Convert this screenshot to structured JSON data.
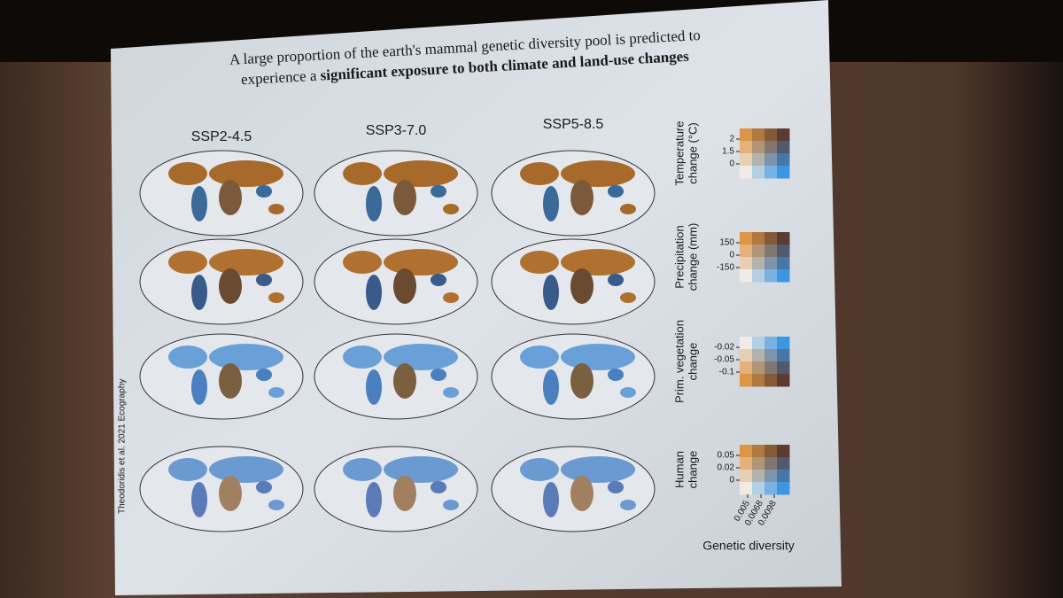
{
  "slide": {
    "title_line1": "A large proportion of the earth's mammal genetic diversity pool is predicted to",
    "title_line2_start": "experience a ",
    "title_line2_bold": "significant exposure to both climate and land-use changes",
    "columns": [
      "SSP2-4.5",
      "SSP3-7.0",
      "SSP5-8.5"
    ],
    "legends": [
      {
        "label_lines": [
          "Temperature",
          "change (°C)"
        ],
        "ticks": [
          "2",
          "1.5",
          "0"
        ]
      },
      {
        "label_lines": [
          "Precipitation",
          "change (mm)"
        ],
        "ticks": [
          "150",
          "0",
          "-150"
        ]
      },
      {
        "label_lines": [
          "Prim. vegetation",
          "change"
        ],
        "ticks": [
          "-0.02",
          "-0.05",
          "-0.1"
        ]
      },
      {
        "label_lines": [
          "Human",
          "change"
        ],
        "ticks": [
          "0.05",
          "0.02",
          "0"
        ]
      }
    ],
    "x_ticks": [
      "0.005",
      "0.0068",
      "0.0098"
    ],
    "x_label": "Genetic diversity",
    "citation": "Theodoridis et al. 2021 Ecography"
  }
}
